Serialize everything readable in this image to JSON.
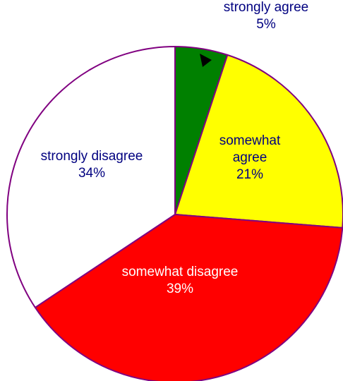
{
  "chart_data": {
    "type": "pie",
    "title": "",
    "start": "12 o'clock",
    "direction": "clockwise",
    "slices": [
      {
        "label_lines": [
          "strongly agree"
        ],
        "value_text": "5%",
        "value": 5,
        "color": "#008000",
        "label_color": "#000080"
      },
      {
        "label_lines": [
          "somewhat",
          "agree"
        ],
        "value_text": "21%",
        "value": 21,
        "color": "#ffff00",
        "label_color": "#000080"
      },
      {
        "label_lines": [
          "somewhat disagree"
        ],
        "value_text": "39%",
        "value": 39,
        "color": "#ff0000",
        "label_color": "#ffffff"
      },
      {
        "label_lines": [
          "strongly disagree"
        ],
        "value_text": "34%",
        "value": 34,
        "color": "#ffffff",
        "label_color": "#000080"
      }
    ],
    "slice_outline_color": "#800080",
    "marker": "black triangle pointer on the strongly agree slice"
  }
}
